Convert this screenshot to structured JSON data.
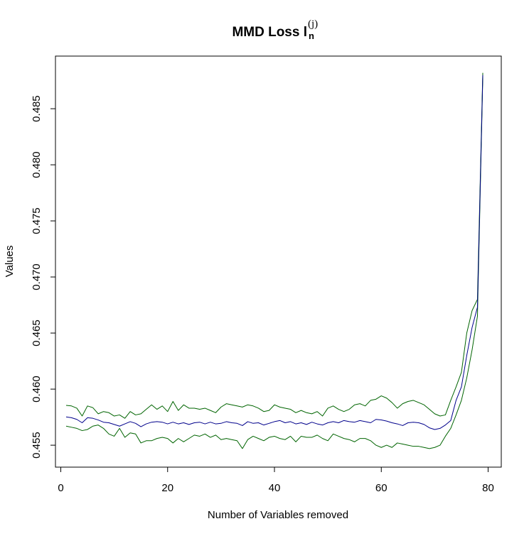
{
  "chart_data": {
    "type": "line",
    "title": {
      "main": "MMD Loss l",
      "sup": "(j)",
      "sub": "n"
    },
    "xlabel": "Number of Variables removed",
    "ylabel": "Values",
    "xlim": [
      1,
      79
    ],
    "ylim": [
      0.4545,
      0.4883
    ],
    "xticks": [
      0,
      20,
      40,
      60,
      80
    ],
    "yticks": [
      0.455,
      0.46,
      0.465,
      0.47,
      0.475,
      0.48,
      0.485
    ],
    "ytick_labels": [
      "0.455",
      "0.460",
      "0.465",
      "0.470",
      "0.475",
      "0.480",
      "0.485"
    ],
    "grid": false,
    "legend": "none",
    "x": [
      1,
      2,
      3,
      4,
      5,
      6,
      7,
      8,
      9,
      10,
      11,
      12,
      13,
      14,
      15,
      16,
      17,
      18,
      19,
      20,
      21,
      22,
      23,
      24,
      25,
      26,
      27,
      28,
      29,
      30,
      31,
      32,
      33,
      34,
      35,
      36,
      37,
      38,
      39,
      40,
      41,
      42,
      43,
      44,
      45,
      46,
      47,
      48,
      49,
      50,
      51,
      52,
      53,
      54,
      55,
      56,
      57,
      58,
      59,
      60,
      61,
      62,
      63,
      64,
      65,
      66,
      67,
      68,
      69,
      70,
      71,
      72,
      73,
      74,
      75,
      76,
      77,
      78,
      79
    ],
    "series": [
      {
        "color": "#00008B",
        "values": [
          0.45752,
          0.45745,
          0.4573,
          0.457,
          0.45745,
          0.4574,
          0.45725,
          0.45705,
          0.457,
          0.45685,
          0.4567,
          0.4569,
          0.4571,
          0.45695,
          0.45665,
          0.4569,
          0.45705,
          0.4571,
          0.45705,
          0.4569,
          0.45705,
          0.4569,
          0.457,
          0.45685,
          0.457,
          0.45705,
          0.4569,
          0.45705,
          0.4569,
          0.45695,
          0.4571,
          0.457,
          0.45695,
          0.45675,
          0.4571,
          0.45695,
          0.457,
          0.4568,
          0.45695,
          0.4571,
          0.4572,
          0.457,
          0.4571,
          0.4569,
          0.457,
          0.45685,
          0.45705,
          0.4569,
          0.4568,
          0.457,
          0.4571,
          0.457,
          0.4572,
          0.4571,
          0.45705,
          0.4572,
          0.4571,
          0.457,
          0.4573,
          0.45725,
          0.45715,
          0.457,
          0.4569,
          0.45675,
          0.457,
          0.45705,
          0.457,
          0.45685,
          0.45655,
          0.4564,
          0.4565,
          0.4568,
          0.4572,
          0.459,
          0.4602,
          0.463,
          0.4655,
          0.4673,
          0.488
        ]
      },
      {
        "color": "#006400",
        "values": [
          0.45855,
          0.4585,
          0.4583,
          0.4576,
          0.4585,
          0.45835,
          0.4578,
          0.458,
          0.4579,
          0.4576,
          0.4577,
          0.4574,
          0.458,
          0.4577,
          0.4578,
          0.4582,
          0.4586,
          0.4582,
          0.4585,
          0.458,
          0.4589,
          0.4581,
          0.4586,
          0.4583,
          0.4583,
          0.4582,
          0.4583,
          0.4581,
          0.4579,
          0.4584,
          0.4587,
          0.4586,
          0.4585,
          0.4584,
          0.4586,
          0.4585,
          0.4583,
          0.458,
          0.4581,
          0.4586,
          0.4584,
          0.4583,
          0.4582,
          0.4579,
          0.4581,
          0.4579,
          0.4578,
          0.458,
          0.4576,
          0.4583,
          0.4585,
          0.4582,
          0.458,
          0.4582,
          0.4586,
          0.4587,
          0.4585,
          0.459,
          0.4591,
          0.4594,
          0.4592,
          0.4588,
          0.4583,
          0.4587,
          0.4589,
          0.459,
          0.4588,
          0.4586,
          0.4582,
          0.4578,
          0.4576,
          0.4577,
          0.459,
          0.4602,
          0.4615,
          0.465,
          0.467,
          0.468,
          0.4882
        ]
      },
      {
        "color": "#006400",
        "values": [
          0.4567,
          0.4566,
          0.4565,
          0.4563,
          0.4564,
          0.4567,
          0.4568,
          0.4565,
          0.456,
          0.4558,
          0.4565,
          0.4557,
          0.4561,
          0.456,
          0.4552,
          0.4554,
          0.4554,
          0.4556,
          0.4557,
          0.4556,
          0.4552,
          0.4556,
          0.4553,
          0.4556,
          0.4559,
          0.4558,
          0.456,
          0.4557,
          0.4559,
          0.4555,
          0.4556,
          0.4555,
          0.4554,
          0.4547,
          0.4555,
          0.4558,
          0.4556,
          0.4554,
          0.4557,
          0.4558,
          0.4556,
          0.4555,
          0.4558,
          0.4553,
          0.4558,
          0.4557,
          0.4557,
          0.4559,
          0.4556,
          0.4554,
          0.456,
          0.4558,
          0.4556,
          0.4555,
          0.4553,
          0.4556,
          0.4556,
          0.4554,
          0.455,
          0.4548,
          0.455,
          0.4548,
          0.4552,
          0.4551,
          0.455,
          0.4549,
          0.4549,
          0.4548,
          0.4547,
          0.4548,
          0.455,
          0.4558,
          0.4565,
          0.4577,
          0.459,
          0.461,
          0.4635,
          0.4665,
          0.4878
        ]
      }
    ]
  }
}
